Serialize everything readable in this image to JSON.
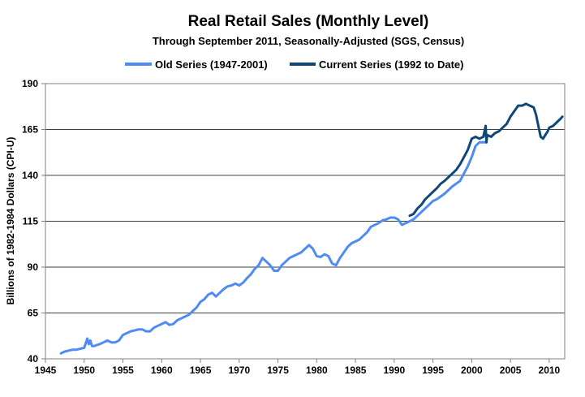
{
  "chart_data": {
    "type": "line",
    "title": "Real Retail Sales (Monthly Level)",
    "subtitle": "Through September 2011, Seasonally-Adjusted (SGS, Census)",
    "xlabel": "",
    "ylabel": "Billions of 1982-1984 Dollars (CPI-U)",
    "xlim": [
      1945,
      2012
    ],
    "ylim": [
      40,
      190
    ],
    "x_ticks": [
      1945,
      1950,
      1955,
      1960,
      1965,
      1970,
      1975,
      1980,
      1985,
      1990,
      1995,
      2000,
      2005,
      2010
    ],
    "y_ticks": [
      40,
      65,
      90,
      115,
      140,
      165,
      190
    ],
    "grid": "horizontal",
    "legend_position": "top",
    "series": [
      {
        "name": "Old Series (1947-2001)",
        "color": "#4f8bf2",
        "x": [
          1947.0,
          1947.5,
          1948.0,
          1948.5,
          1949.0,
          1949.5,
          1950.0,
          1950.4,
          1950.6,
          1950.8,
          1951.0,
          1951.3,
          1951.6,
          1952.0,
          1952.5,
          1953.0,
          1953.5,
          1954.0,
          1954.5,
          1955.0,
          1955.5,
          1956.0,
          1956.5,
          1957.0,
          1957.5,
          1958.0,
          1958.5,
          1959.0,
          1959.5,
          1960.0,
          1960.5,
          1961.0,
          1961.5,
          1962.0,
          1962.5,
          1963.0,
          1963.5,
          1964.0,
          1964.5,
          1965.0,
          1965.5,
          1966.0,
          1966.5,
          1967.0,
          1967.5,
          1968.0,
          1968.5,
          1969.0,
          1969.5,
          1970.0,
          1970.5,
          1971.0,
          1971.5,
          1972.0,
          1972.5,
          1973.0,
          1973.5,
          1974.0,
          1974.5,
          1975.0,
          1975.5,
          1976.0,
          1976.5,
          1977.0,
          1977.5,
          1978.0,
          1978.5,
          1979.0,
          1979.5,
          1980.0,
          1980.5,
          1981.0,
          1981.5,
          1982.0,
          1982.5,
          1983.0,
          1983.5,
          1984.0,
          1984.5,
          1985.0,
          1985.5,
          1986.0,
          1986.5,
          1987.0,
          1987.5,
          1988.0,
          1988.5,
          1989.0,
          1989.5,
          1990.0,
          1990.5,
          1991.0,
          1991.5,
          1992.0,
          1992.5,
          1993.0,
          1993.5,
          1994.0,
          1994.5,
          1995.0,
          1995.5,
          1996.0,
          1996.5,
          1997.0,
          1997.5,
          1998.0,
          1998.5,
          1999.0,
          1999.5,
          2000.0,
          2000.5,
          2001.0,
          2001.5,
          2001.9
        ],
        "values": [
          43,
          44,
          44.5,
          45,
          45,
          45.5,
          46,
          51,
          48,
          50,
          47,
          47,
          47.5,
          48,
          49,
          50,
          49,
          49,
          50,
          53,
          54,
          55,
          55.5,
          56,
          56,
          55,
          55,
          57,
          58,
          59,
          60,
          58.5,
          59,
          61,
          62,
          63,
          64,
          66,
          68,
          71,
          72.5,
          75,
          76,
          74,
          76,
          78,
          79.5,
          80,
          81,
          80,
          81.5,
          84,
          86,
          89,
          91,
          95,
          93,
          91,
          88,
          88,
          91,
          93,
          95,
          96,
          97,
          98,
          100,
          102,
          100,
          96,
          95.5,
          97,
          96,
          92,
          91,
          95,
          98,
          101,
          103,
          104,
          105,
          107,
          109,
          112,
          113,
          114,
          115.5,
          116,
          117,
          117,
          116,
          113,
          114,
          115,
          116,
          118,
          120,
          122,
          124,
          126,
          127,
          128.5,
          130,
          132,
          134,
          135.5,
          137,
          141,
          145,
          150,
          156,
          158,
          158,
          158
        ]
      },
      {
        "name": "Current Series (1992 to Date)",
        "color": "#0f4776",
        "x": [
          1992.0,
          1992.5,
          1993.0,
          1993.5,
          1994.0,
          1994.5,
          1995.0,
          1995.5,
          1996.0,
          1996.5,
          1997.0,
          1997.5,
          1998.0,
          1998.5,
          1999.0,
          1999.5,
          2000.0,
          2000.5,
          2001.0,
          2001.5,
          2001.8,
          2001.9,
          2002.0,
          2002.5,
          2003.0,
          2003.5,
          2004.0,
          2004.5,
          2005.0,
          2005.5,
          2006.0,
          2006.5,
          2007.0,
          2007.5,
          2008.0,
          2008.3,
          2008.6,
          2008.9,
          2009.2,
          2009.5,
          2009.8,
          2010.0,
          2010.5,
          2011.0,
          2011.5,
          2011.7
        ],
        "values": [
          118,
          119,
          122,
          124,
          127,
          129,
          131,
          133,
          135.5,
          137,
          139,
          141,
          143,
          146,
          150,
          154,
          160,
          161,
          160,
          161,
          167,
          158,
          162,
          161,
          163,
          164,
          166,
          168,
          172,
          175,
          178,
          178,
          179,
          178,
          177,
          173,
          167,
          161,
          160,
          162,
          164,
          166,
          167,
          169,
          171,
          172
        ]
      }
    ]
  }
}
